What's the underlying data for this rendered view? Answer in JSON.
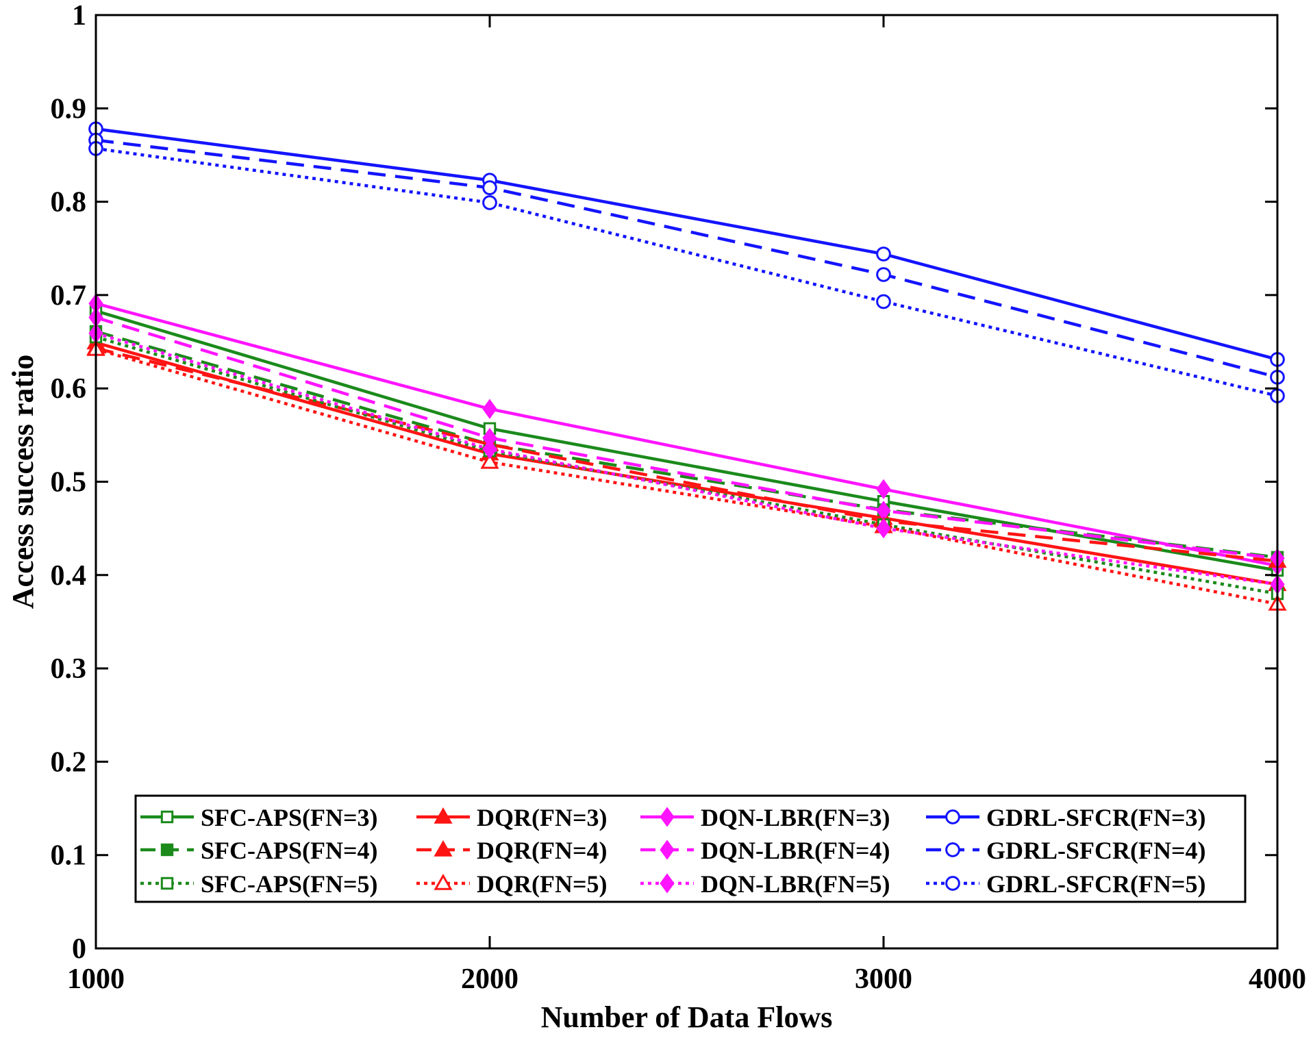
{
  "chart_data": {
    "type": "line",
    "title": "",
    "xlabel": "Number of Data Flows",
    "ylabel": "Access success ratio",
    "x": [
      1000,
      2000,
      3000,
      4000
    ],
    "xlim": [
      1000,
      4000
    ],
    "ylim": [
      0,
      1
    ],
    "xticks": [
      "1000",
      "2000",
      "3000",
      "4000"
    ],
    "yticks": [
      "0",
      "0.1",
      "0.2",
      "0.3",
      "0.4",
      "0.5",
      "0.6",
      "0.7",
      "0.8",
      "0.9",
      "1"
    ],
    "grid": false,
    "legend_position": "bottom-center",
    "series": [
      {
        "name": "SFC-APS(FN=3)",
        "color": "#1b8a1b",
        "dash": "solid",
        "marker": "square-open",
        "values": [
          0.683,
          0.557,
          0.479,
          0.405
        ]
      },
      {
        "name": "DQR(FN=3)",
        "color": "#ff1414",
        "dash": "solid",
        "marker": "triangle-filled",
        "values": [
          0.649,
          0.53,
          0.461,
          0.39
        ]
      },
      {
        "name": "DQN-LBR(FN=3)",
        "color": "#ff14ff",
        "dash": "solid",
        "marker": "diamond-filled",
        "values": [
          0.691,
          0.578,
          0.492,
          0.41
        ]
      },
      {
        "name": "GDRL-SFCR(FN=3)",
        "color": "#1414ff",
        "dash": "solid",
        "marker": "circle-open",
        "values": [
          0.878,
          0.823,
          0.744,
          0.631
        ]
      },
      {
        "name": "SFC-APS(FN=4)",
        "color": "#1b8a1b",
        "dash": "dashed",
        "marker": "square-filled",
        "values": [
          0.661,
          0.54,
          0.47,
          0.419
        ]
      },
      {
        "name": "DQR(FN=4)",
        "color": "#ff1414",
        "dash": "dashed",
        "marker": "triangle-filled",
        "values": [
          0.643,
          0.54,
          0.458,
          0.415
        ]
      },
      {
        "name": "DQN-LBR(FN=4)",
        "color": "#ff14ff",
        "dash": "dashed",
        "marker": "diamond-filled",
        "values": [
          0.676,
          0.547,
          0.469,
          0.418
        ]
      },
      {
        "name": "GDRL-SFCR(FN=4)",
        "color": "#1414ff",
        "dash": "dashed",
        "marker": "circle-open",
        "values": [
          0.866,
          0.815,
          0.722,
          0.612
        ]
      },
      {
        "name": "SFC-APS(FN=5)",
        "color": "#1b8a1b",
        "dash": "dotted",
        "marker": "square-open",
        "values": [
          0.655,
          0.533,
          0.454,
          0.38
        ]
      },
      {
        "name": "DQR(FN=5)",
        "color": "#ff1414",
        "dash": "dotted",
        "marker": "triangle-open",
        "values": [
          0.642,
          0.521,
          0.452,
          0.369
        ]
      },
      {
        "name": "DQN-LBR(FN=5)",
        "color": "#ff14ff",
        "dash": "dotted",
        "marker": "diamond-filled",
        "values": [
          0.659,
          0.535,
          0.45,
          0.39
        ]
      },
      {
        "name": "GDRL-SFCR(FN=5)",
        "color": "#1414ff",
        "dash": "dotted",
        "marker": "circle-open",
        "values": [
          0.857,
          0.799,
          0.693,
          0.592
        ]
      }
    ]
  }
}
